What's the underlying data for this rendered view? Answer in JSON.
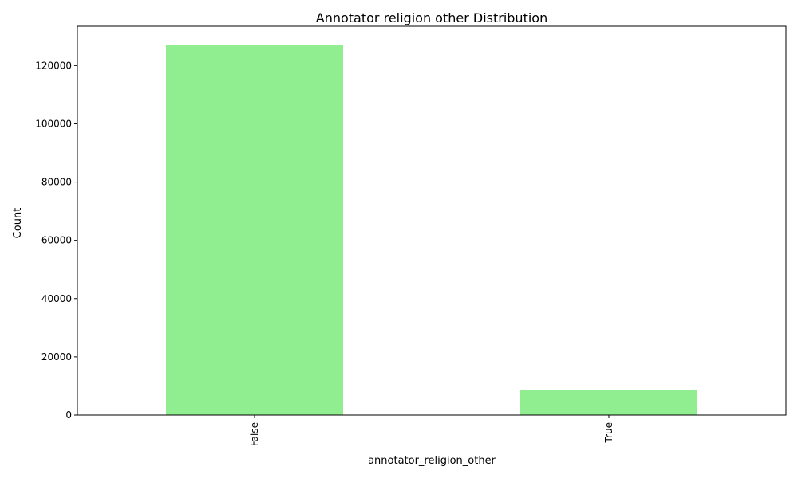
{
  "chart_data": {
    "type": "bar",
    "title": "Annotator religion other Distribution",
    "xlabel": "annotator_religion_other",
    "ylabel": "Count",
    "categories": [
      "False",
      "True"
    ],
    "values": [
      127100,
      8600
    ],
    "ylim": [
      0,
      133500
    ],
    "yticks": [
      0,
      20000,
      40000,
      60000,
      80000,
      100000,
      120000
    ],
    "ytick_labels": [
      "0",
      "20000",
      "40000",
      "60000",
      "80000",
      "100000",
      "120000"
    ],
    "bar_color": "#90ee90",
    "grid": false,
    "legend": "none"
  }
}
